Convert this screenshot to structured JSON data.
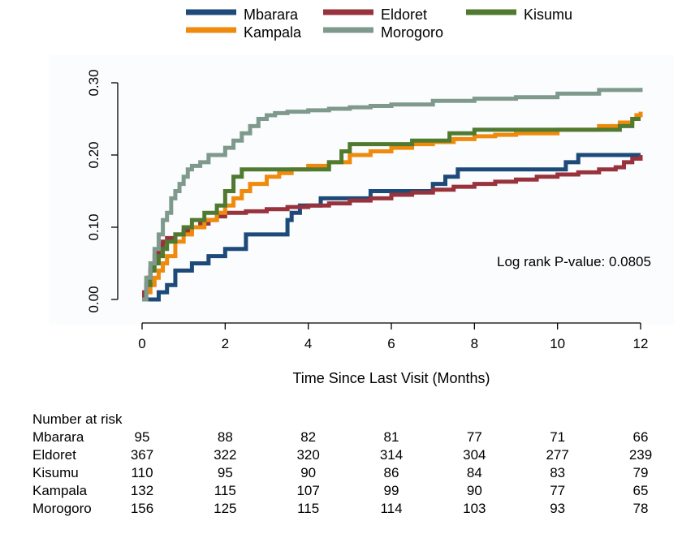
{
  "chart_data": {
    "type": "line",
    "xlabel": "Time Since Last Visit (Months)",
    "ylabel": "",
    "xlim": [
      0,
      12
    ],
    "ylim": [
      0,
      0.3
    ],
    "xticks": [
      0,
      2,
      4,
      6,
      8,
      10,
      12
    ],
    "xtick_labels": [
      "0",
      "2",
      "4",
      "6",
      "8",
      "10",
      "12"
    ],
    "yticks": [
      0,
      0.1,
      0.2,
      0.3
    ],
    "ytick_labels": [
      "0.00",
      "0.10",
      "0.20",
      "0.30"
    ],
    "grid": false,
    "legend_position": "top",
    "annotation": "Log rank P-value: 0.0805",
    "series": [
      {
        "name": "Mbarara",
        "color": "#1d4a78",
        "x": [
          0,
          0.4,
          0.6,
          0.8,
          1.2,
          1.6,
          2.0,
          2.5,
          3.5,
          3.6,
          3.8,
          4.3,
          5.5,
          6.5,
          7.0,
          7.3,
          7.6,
          7.8,
          9.8,
          10.2,
          10.5,
          12.0
        ],
        "y": [
          0,
          0.01,
          0.02,
          0.04,
          0.05,
          0.06,
          0.07,
          0.09,
          0.11,
          0.12,
          0.13,
          0.14,
          0.15,
          0.15,
          0.16,
          0.17,
          0.18,
          0.18,
          0.18,
          0.19,
          0.2,
          0.2
        ]
      },
      {
        "name": "Eldoret",
        "color": "#98323c",
        "x": [
          0,
          0.05,
          0.1,
          0.15,
          0.2,
          0.25,
          0.3,
          0.35,
          0.4,
          0.45,
          0.5,
          0.6,
          0.7,
          0.8,
          1.0,
          1.2,
          1.4,
          1.6,
          1.8,
          2.0,
          2.5,
          3.0,
          3.5,
          4.0,
          4.5,
          5.0,
          5.5,
          6.0,
          6.5,
          7.0,
          7.5,
          8.0,
          8.5,
          9.0,
          9.5,
          10.0,
          10.5,
          11.0,
          11.4,
          11.6,
          11.8,
          12.0
        ],
        "y": [
          0,
          0.01,
          0.02,
          0.03,
          0.04,
          0.05,
          0.06,
          0.065,
          0.07,
          0.075,
          0.08,
          0.085,
          0.085,
          0.09,
          0.095,
          0.1,
          0.105,
          0.11,
          0.115,
          0.12,
          0.122,
          0.125,
          0.128,
          0.13,
          0.133,
          0.137,
          0.14,
          0.145,
          0.148,
          0.152,
          0.156,
          0.16,
          0.163,
          0.166,
          0.17,
          0.173,
          0.176,
          0.18,
          0.183,
          0.19,
          0.195,
          0.2
        ]
      },
      {
        "name": "Kisumu",
        "color": "#4f7a2f",
        "x": [
          0,
          0.1,
          0.2,
          0.3,
          0.4,
          0.5,
          0.6,
          0.8,
          1.0,
          1.2,
          1.5,
          1.8,
          2.0,
          2.2,
          2.4,
          2.6,
          3.5,
          4.5,
          4.8,
          5.0,
          5.5,
          6.5,
          7.0,
          7.4,
          8.0,
          9.0,
          10.0,
          11.0,
          11.5,
          11.8,
          12.0
        ],
        "y": [
          0,
          0.02,
          0.04,
          0.05,
          0.06,
          0.07,
          0.08,
          0.09,
          0.1,
          0.11,
          0.12,
          0.13,
          0.15,
          0.17,
          0.18,
          0.18,
          0.18,
          0.19,
          0.205,
          0.215,
          0.215,
          0.22,
          0.22,
          0.23,
          0.235,
          0.235,
          0.235,
          0.235,
          0.24,
          0.25,
          0.25
        ]
      },
      {
        "name": "Kampala",
        "color": "#ef8a0c",
        "x": [
          0,
          0.1,
          0.2,
          0.3,
          0.4,
          0.5,
          0.6,
          0.8,
          1.0,
          1.2,
          1.5,
          1.8,
          2.0,
          2.2,
          2.4,
          2.6,
          3.0,
          3.3,
          3.6,
          4.0,
          4.5,
          5.0,
          5.5,
          6.0,
          6.5,
          7.0,
          7.5,
          8.0,
          8.5,
          9.0,
          10.0,
          11.0,
          11.5,
          11.8,
          11.9,
          12.0
        ],
        "y": [
          0,
          0.01,
          0.02,
          0.03,
          0.04,
          0.05,
          0.06,
          0.08,
          0.09,
          0.1,
          0.11,
          0.12,
          0.13,
          0.14,
          0.15,
          0.16,
          0.17,
          0.175,
          0.18,
          0.185,
          0.19,
          0.2,
          0.205,
          0.21,
          0.215,
          0.218,
          0.222,
          0.226,
          0.228,
          0.23,
          0.235,
          0.24,
          0.245,
          0.25,
          0.255,
          0.26
        ]
      },
      {
        "name": "Morogoro",
        "color": "#7f9a8d",
        "x": [
          0,
          0.1,
          0.2,
          0.3,
          0.4,
          0.5,
          0.6,
          0.7,
          0.8,
          0.9,
          1.0,
          1.1,
          1.2,
          1.4,
          1.6,
          2.0,
          2.2,
          2.4,
          2.6,
          2.8,
          3.0,
          3.2,
          3.5,
          4.0,
          4.5,
          5.0,
          5.5,
          6.0,
          7.0,
          8.0,
          9.0,
          10.0,
          11.0,
          12.0
        ],
        "y": [
          0,
          0.03,
          0.05,
          0.07,
          0.09,
          0.11,
          0.12,
          0.14,
          0.15,
          0.16,
          0.17,
          0.18,
          0.185,
          0.19,
          0.2,
          0.21,
          0.22,
          0.23,
          0.24,
          0.25,
          0.255,
          0.258,
          0.26,
          0.262,
          0.264,
          0.266,
          0.268,
          0.27,
          0.275,
          0.278,
          0.28,
          0.285,
          0.29,
          0.293
        ]
      }
    ],
    "legend_order": [
      "Mbarara",
      "Eldoret",
      "Kisumu",
      "Kampala",
      "Morogoro"
    ],
    "risk_table": {
      "title": "Number at risk",
      "times": [
        0,
        2,
        4,
        6,
        8,
        10,
        12
      ],
      "rows": [
        {
          "label": "Mbarara",
          "values": [
            "95",
            "88",
            "82",
            "81",
            "77",
            "71",
            "66"
          ]
        },
        {
          "label": "Eldoret",
          "values": [
            "367",
            "322",
            "320",
            "314",
            "304",
            "277",
            "239"
          ]
        },
        {
          "label": "Kisumu",
          "values": [
            "110",
            "95",
            "90",
            "86",
            "84",
            "83",
            "79"
          ]
        },
        {
          "label": "Kampala",
          "values": [
            "132",
            "115",
            "107",
            "99",
            "90",
            "77",
            "65"
          ]
        },
        {
          "label": "Morogoro",
          "values": [
            "156",
            "125",
            "115",
            "114",
            "103",
            "93",
            "78"
          ]
        }
      ]
    }
  }
}
